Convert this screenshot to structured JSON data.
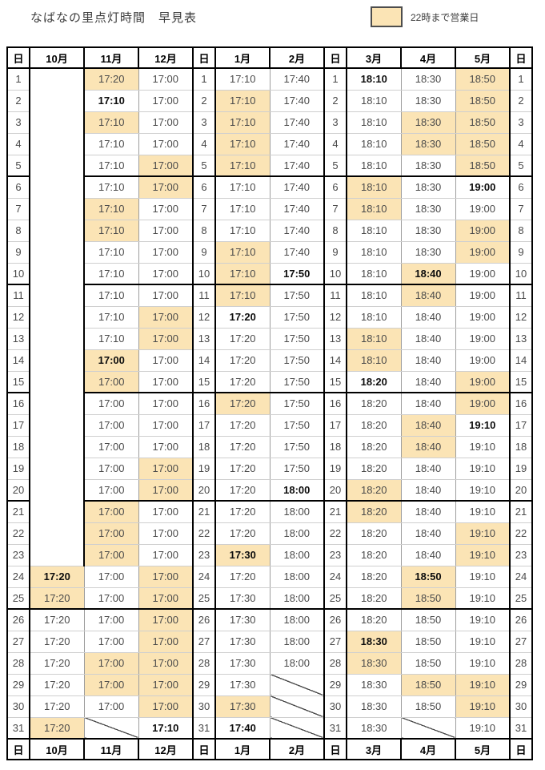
{
  "title": "なばなの里点灯時間　早見表",
  "legend": {
    "label": "22時まで営業日",
    "swatch_color": "#fbe4b5"
  },
  "colors": {
    "highlight": "#fbe4b5",
    "grid_thick": "#000000",
    "grid_thin_v": "#9d9d9d",
    "grid_thin_h": "#cfcfcf",
    "time_text": "#4a4a4a",
    "bold_text": "#0d0d0d"
  },
  "table": {
    "layout": [
      {
        "type": "day",
        "label": "日"
      },
      {
        "type": "month",
        "key": "oct",
        "label": "10月"
      },
      {
        "type": "month",
        "key": "nov",
        "label": "11月"
      },
      {
        "type": "month",
        "key": "dec",
        "label": "12月"
      },
      {
        "type": "day",
        "label": "日"
      },
      {
        "type": "month",
        "key": "jan",
        "label": "1月"
      },
      {
        "type": "month",
        "key": "feb",
        "label": "2月"
      },
      {
        "type": "day",
        "label": "日"
      },
      {
        "type": "month",
        "key": "mar",
        "label": "3月"
      },
      {
        "type": "month",
        "key": "apr",
        "label": "4月"
      },
      {
        "type": "month",
        "key": "may",
        "label": "5月"
      },
      {
        "type": "day",
        "label": "日"
      }
    ],
    "oct_merged_blank_rows": 23,
    "group_end_days": [
      5,
      10,
      15,
      20,
      25
    ],
    "rows": [
      {
        "day": 1,
        "oct": null,
        "nov": {
          "time": "17:20",
          "late": true
        },
        "dec": {
          "time": "17:00"
        },
        "jan": {
          "time": "17:10"
        },
        "feb": {
          "time": "17:40"
        },
        "mar": {
          "time": "18:10",
          "bold": true
        },
        "apr": {
          "time": "18:30"
        },
        "may": {
          "time": "18:50",
          "late": true
        }
      },
      {
        "day": 2,
        "oct": null,
        "nov": {
          "time": "17:10",
          "bold": true
        },
        "dec": {
          "time": "17:00"
        },
        "jan": {
          "time": "17:10",
          "late": true
        },
        "feb": {
          "time": "17:40"
        },
        "mar": {
          "time": "18:10"
        },
        "apr": {
          "time": "18:30"
        },
        "may": {
          "time": "18:50",
          "late": true
        }
      },
      {
        "day": 3,
        "oct": null,
        "nov": {
          "time": "17:10",
          "late": true
        },
        "dec": {
          "time": "17:00"
        },
        "jan": {
          "time": "17:10",
          "late": true
        },
        "feb": {
          "time": "17:40"
        },
        "mar": {
          "time": "18:10"
        },
        "apr": {
          "time": "18:30",
          "late": true
        },
        "may": {
          "time": "18:50",
          "late": true
        }
      },
      {
        "day": 4,
        "oct": null,
        "nov": {
          "time": "17:10"
        },
        "dec": {
          "time": "17:00"
        },
        "jan": {
          "time": "17:10",
          "late": true
        },
        "feb": {
          "time": "17:40"
        },
        "mar": {
          "time": "18:10"
        },
        "apr": {
          "time": "18:30",
          "late": true
        },
        "may": {
          "time": "18:50",
          "late": true
        }
      },
      {
        "day": 5,
        "oct": null,
        "nov": {
          "time": "17:10"
        },
        "dec": {
          "time": "17:00",
          "late": true
        },
        "jan": {
          "time": "17:10",
          "late": true
        },
        "feb": {
          "time": "17:40"
        },
        "mar": {
          "time": "18:10"
        },
        "apr": {
          "time": "18:30"
        },
        "may": {
          "time": "18:50",
          "late": true
        }
      },
      {
        "day": 6,
        "oct": null,
        "nov": {
          "time": "17:10"
        },
        "dec": {
          "time": "17:00",
          "late": true
        },
        "jan": {
          "time": "17:10"
        },
        "feb": {
          "time": "17:40"
        },
        "mar": {
          "time": "18:10",
          "late": true
        },
        "apr": {
          "time": "18:30"
        },
        "may": {
          "time": "19:00",
          "bold": true
        }
      },
      {
        "day": 7,
        "oct": null,
        "nov": {
          "time": "17:10",
          "late": true
        },
        "dec": {
          "time": "17:00"
        },
        "jan": {
          "time": "17:10"
        },
        "feb": {
          "time": "17:40"
        },
        "mar": {
          "time": "18:10",
          "late": true
        },
        "apr": {
          "time": "18:30"
        },
        "may": {
          "time": "19:00"
        }
      },
      {
        "day": 8,
        "oct": null,
        "nov": {
          "time": "17:10",
          "late": true
        },
        "dec": {
          "time": "17:00"
        },
        "jan": {
          "time": "17:10"
        },
        "feb": {
          "time": "17:40"
        },
        "mar": {
          "time": "18:10"
        },
        "apr": {
          "time": "18:30"
        },
        "may": {
          "time": "19:00",
          "late": true
        }
      },
      {
        "day": 9,
        "oct": null,
        "nov": {
          "time": "17:10"
        },
        "dec": {
          "time": "17:00"
        },
        "jan": {
          "time": "17:10",
          "late": true
        },
        "feb": {
          "time": "17:40"
        },
        "mar": {
          "time": "18:10"
        },
        "apr": {
          "time": "18:30"
        },
        "may": {
          "time": "19:00",
          "late": true
        }
      },
      {
        "day": 10,
        "oct": null,
        "nov": {
          "time": "17:10"
        },
        "dec": {
          "time": "17:00"
        },
        "jan": {
          "time": "17:10",
          "late": true
        },
        "feb": {
          "time": "17:50",
          "bold": true
        },
        "mar": {
          "time": "18:10"
        },
        "apr": {
          "time": "18:40",
          "bold": true,
          "late": true
        },
        "may": {
          "time": "19:00"
        }
      },
      {
        "day": 11,
        "oct": null,
        "nov": {
          "time": "17:10"
        },
        "dec": {
          "time": "17:00"
        },
        "jan": {
          "time": "17:10",
          "late": true
        },
        "feb": {
          "time": "17:50"
        },
        "mar": {
          "time": "18:10"
        },
        "apr": {
          "time": "18:40",
          "late": true
        },
        "may": {
          "time": "19:00"
        }
      },
      {
        "day": 12,
        "oct": null,
        "nov": {
          "time": "17:10"
        },
        "dec": {
          "time": "17:00",
          "late": true
        },
        "jan": {
          "time": "17:20",
          "bold": true
        },
        "feb": {
          "time": "17:50"
        },
        "mar": {
          "time": "18:10"
        },
        "apr": {
          "time": "18:40"
        },
        "may": {
          "time": "19:00"
        }
      },
      {
        "day": 13,
        "oct": null,
        "nov": {
          "time": "17:10"
        },
        "dec": {
          "time": "17:00",
          "late": true
        },
        "jan": {
          "time": "17:20"
        },
        "feb": {
          "time": "17:50"
        },
        "mar": {
          "time": "18:10",
          "late": true
        },
        "apr": {
          "time": "18:40"
        },
        "may": {
          "time": "19:00"
        }
      },
      {
        "day": 14,
        "oct": null,
        "nov": {
          "time": "17:00",
          "bold": true,
          "late": true
        },
        "dec": {
          "time": "17:00"
        },
        "jan": {
          "time": "17:20"
        },
        "feb": {
          "time": "17:50"
        },
        "mar": {
          "time": "18:10",
          "late": true
        },
        "apr": {
          "time": "18:40"
        },
        "may": {
          "time": "19:00"
        }
      },
      {
        "day": 15,
        "oct": null,
        "nov": {
          "time": "17:00",
          "late": true
        },
        "dec": {
          "time": "17:00"
        },
        "jan": {
          "time": "17:20"
        },
        "feb": {
          "time": "17:50"
        },
        "mar": {
          "time": "18:20",
          "bold": true
        },
        "apr": {
          "time": "18:40"
        },
        "may": {
          "time": "19:00",
          "late": true
        }
      },
      {
        "day": 16,
        "oct": null,
        "nov": {
          "time": "17:00"
        },
        "dec": {
          "time": "17:00"
        },
        "jan": {
          "time": "17:20",
          "late": true
        },
        "feb": {
          "time": "17:50"
        },
        "mar": {
          "time": "18:20"
        },
        "apr": {
          "time": "18:40"
        },
        "may": {
          "time": "19:00",
          "late": true
        }
      },
      {
        "day": 17,
        "oct": null,
        "nov": {
          "time": "17:00"
        },
        "dec": {
          "time": "17:00"
        },
        "jan": {
          "time": "17:20"
        },
        "feb": {
          "time": "17:50"
        },
        "mar": {
          "time": "18:20"
        },
        "apr": {
          "time": "18:40",
          "late": true
        },
        "may": {
          "time": "19:10",
          "bold": true
        }
      },
      {
        "day": 18,
        "oct": null,
        "nov": {
          "time": "17:00"
        },
        "dec": {
          "time": "17:00"
        },
        "jan": {
          "time": "17:20"
        },
        "feb": {
          "time": "17:50"
        },
        "mar": {
          "time": "18:20"
        },
        "apr": {
          "time": "18:40",
          "late": true
        },
        "may": {
          "time": "19:10"
        }
      },
      {
        "day": 19,
        "oct": null,
        "nov": {
          "time": "17:00"
        },
        "dec": {
          "time": "17:00",
          "late": true
        },
        "jan": {
          "time": "17:20"
        },
        "feb": {
          "time": "17:50"
        },
        "mar": {
          "time": "18:20"
        },
        "apr": {
          "time": "18:40"
        },
        "may": {
          "time": "19:10"
        }
      },
      {
        "day": 20,
        "oct": null,
        "nov": {
          "time": "17:00"
        },
        "dec": {
          "time": "17:00",
          "late": true
        },
        "jan": {
          "time": "17:20"
        },
        "feb": {
          "time": "18:00",
          "bold": true
        },
        "mar": {
          "time": "18:20",
          "late": true
        },
        "apr": {
          "time": "18:40"
        },
        "may": {
          "time": "19:10"
        }
      },
      {
        "day": 21,
        "oct": null,
        "nov": {
          "time": "17:00",
          "late": true
        },
        "dec": {
          "time": "17:00"
        },
        "jan": {
          "time": "17:20"
        },
        "feb": {
          "time": "18:00"
        },
        "mar": {
          "time": "18:20",
          "late": true
        },
        "apr": {
          "time": "18:40"
        },
        "may": {
          "time": "19:10"
        }
      },
      {
        "day": 22,
        "oct": null,
        "nov": {
          "time": "17:00",
          "late": true
        },
        "dec": {
          "time": "17:00"
        },
        "jan": {
          "time": "17:20"
        },
        "feb": {
          "time": "18:00"
        },
        "mar": {
          "time": "18:20"
        },
        "apr": {
          "time": "18:40"
        },
        "may": {
          "time": "19:10",
          "late": true
        }
      },
      {
        "day": 23,
        "oct": null,
        "nov": {
          "time": "17:00",
          "late": true
        },
        "dec": {
          "time": "17:00"
        },
        "jan": {
          "time": "17:30",
          "bold": true,
          "late": true
        },
        "feb": {
          "time": "18:00"
        },
        "mar": {
          "time": "18:20"
        },
        "apr": {
          "time": "18:40"
        },
        "may": {
          "time": "19:10",
          "late": true
        }
      },
      {
        "day": 24,
        "oct": {
          "time": "17:20",
          "bold": true,
          "late": true
        },
        "nov": {
          "time": "17:00"
        },
        "dec": {
          "time": "17:00",
          "late": true
        },
        "jan": {
          "time": "17:20"
        },
        "feb": {
          "time": "18:00"
        },
        "mar": {
          "time": "18:20"
        },
        "apr": {
          "time": "18:50",
          "bold": true,
          "late": true
        },
        "may": {
          "time": "19:10"
        }
      },
      {
        "day": 25,
        "oct": {
          "time": "17:20",
          "late": true
        },
        "nov": {
          "time": "17:00"
        },
        "dec": {
          "time": "17:00",
          "late": true
        },
        "jan": {
          "time": "17:30"
        },
        "feb": {
          "time": "18:00"
        },
        "mar": {
          "time": "18:20"
        },
        "apr": {
          "time": "18:50",
          "late": true
        },
        "may": {
          "time": "19:10"
        }
      },
      {
        "day": 26,
        "oct": {
          "time": "17:20"
        },
        "nov": {
          "time": "17:00"
        },
        "dec": {
          "time": "17:00",
          "late": true
        },
        "jan": {
          "time": "17:30"
        },
        "feb": {
          "time": "18:00"
        },
        "mar": {
          "time": "18:20"
        },
        "apr": {
          "time": "18:50"
        },
        "may": {
          "time": "19:10"
        }
      },
      {
        "day": 27,
        "oct": {
          "time": "17:20"
        },
        "nov": {
          "time": "17:00"
        },
        "dec": {
          "time": "17:00",
          "late": true
        },
        "jan": {
          "time": "17:30"
        },
        "feb": {
          "time": "18:00"
        },
        "mar": {
          "time": "18:30",
          "bold": true,
          "late": true
        },
        "apr": {
          "time": "18:50"
        },
        "may": {
          "time": "19:10"
        }
      },
      {
        "day": 28,
        "oct": {
          "time": "17:20"
        },
        "nov": {
          "time": "17:00",
          "late": true
        },
        "dec": {
          "time": "17:00",
          "late": true
        },
        "jan": {
          "time": "17:30"
        },
        "feb": {
          "time": "18:00"
        },
        "mar": {
          "time": "18:30",
          "late": true
        },
        "apr": {
          "time": "18:50"
        },
        "may": {
          "time": "19:10"
        }
      },
      {
        "day": 29,
        "oct": {
          "time": "17:20"
        },
        "nov": {
          "time": "17:00",
          "late": true
        },
        "dec": {
          "time": "17:00",
          "late": true
        },
        "jan": {
          "time": "17:30"
        },
        "feb": {
          "slash": true
        },
        "mar": {
          "time": "18:30"
        },
        "apr": {
          "time": "18:50",
          "late": true
        },
        "may": {
          "time": "19:10",
          "late": true
        }
      },
      {
        "day": 30,
        "oct": {
          "time": "17:20"
        },
        "nov": {
          "time": "17:00"
        },
        "dec": {
          "time": "17:00",
          "late": true
        },
        "jan": {
          "time": "17:30",
          "late": true
        },
        "feb": {
          "slash": true
        },
        "mar": {
          "time": "18:30"
        },
        "apr": {
          "time": "18:50"
        },
        "may": {
          "time": "19:10",
          "late": true
        }
      },
      {
        "day": 31,
        "oct": {
          "time": "17:20",
          "late": true
        },
        "nov": {
          "slash": true
        },
        "dec": {
          "time": "17:10",
          "bold": true
        },
        "jan": {
          "time": "17:40",
          "bold": true
        },
        "feb": {
          "slash": true
        },
        "mar": {
          "time": "18:30"
        },
        "apr": {
          "slash": true
        },
        "may": {
          "time": "19:10"
        }
      }
    ]
  }
}
